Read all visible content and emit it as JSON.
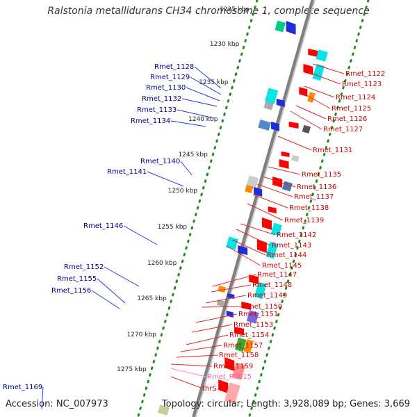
{
  "title": "Ralstonia metallidurans CH34 chromosome 1, complete sequence",
  "accession": "Accession: NC_007973",
  "summary": "Topology: circular; Length: 3,928,089 bp; Genes: 3,669",
  "colors": {
    "backbone": "#808080",
    "scale_dots": "#228b22",
    "forward_label": "#00008b",
    "reverse_label": "#cc0000",
    "rna_label": "#ee66aa",
    "trna_label": "#cc0000"
  },
  "scale_ticks": [
    "1225 kbp",
    "1230 kbp",
    "1235 kbp",
    "1240 kbp",
    "1245 kbp",
    "1250 kbp",
    "1255 kbp",
    "1260 kbp",
    "1265 kbp",
    "1270 kbp",
    "1275 kbp"
  ],
  "forward_genes": [
    "Rmet_1128",
    "Rmet_1129",
    "Rmet_1130",
    "Rmet_1132",
    "Rmet_1133",
    "Rmet_1134",
    "Rmet_1140",
    "Rmet_1141",
    "Rmet_1146",
    "Rmet_1152",
    "Rmet_1155",
    "Rmet_1156",
    "Rmet_1169"
  ],
  "reverse_genes": [
    "Rmet_1122",
    "Rmet_1123",
    "Rmet_1124",
    "Rmet_1125",
    "Rmet_1126",
    "Rmet_1127",
    "Rmet_1131",
    "Rmet_1135",
    "Rmet_1136",
    "Rmet_1137",
    "Rmet_1138",
    "Rmet_1139",
    "Rmet_1142",
    "Rmet_1143",
    "Rmet_1144",
    "Rmet_1145",
    "Rmet_1147",
    "Rmet_1148",
    "Rmet_1149",
    "Rmet_1150",
    "Rmet_1151",
    "Rmet_1153",
    "Rmet_1154",
    "Rmet_1157",
    "Rmet_1158",
    "Rmet_1159"
  ],
  "rna_genes": [
    "Rmet_R0015"
  ],
  "trna_genes": [
    "thrS"
  ]
}
